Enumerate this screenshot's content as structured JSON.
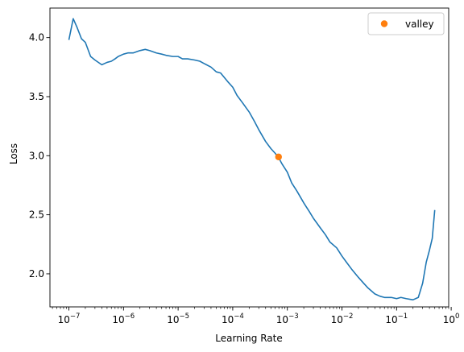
{
  "chart_data": {
    "type": "line",
    "xlabel": "Learning Rate",
    "ylabel": "Loss",
    "x_scale": "log",
    "xlim": [
      4.5e-08,
      0.9
    ],
    "ylim": [
      1.72,
      4.25
    ],
    "x_ticks": [
      {
        "value": 1e-07,
        "base": "10",
        "exp": "−7"
      },
      {
        "value": 1e-06,
        "base": "10",
        "exp": "−6"
      },
      {
        "value": 1e-05,
        "base": "10",
        "exp": "−5"
      },
      {
        "value": 0.0001,
        "base": "10",
        "exp": "−4"
      },
      {
        "value": 0.001,
        "base": "10",
        "exp": "−3"
      },
      {
        "value": 0.01,
        "base": "10",
        "exp": "−2"
      },
      {
        "value": 0.1,
        "base": "10",
        "exp": "−1"
      },
      {
        "value": 1,
        "base": "10",
        "exp": "0"
      }
    ],
    "y_ticks": [
      {
        "value": 2.0,
        "label": "2.0"
      },
      {
        "value": 2.5,
        "label": "2.5"
      },
      {
        "value": 3.0,
        "label": "3.0"
      },
      {
        "value": 3.5,
        "label": "3.5"
      },
      {
        "value": 4.0,
        "label": "4.0"
      }
    ],
    "grid": false,
    "legend": {
      "placement": "top-right",
      "entries": [
        "valley"
      ]
    },
    "series": [
      {
        "color": "#1f77b4",
        "x": [
          1e-07,
          1.2e-07,
          1.4e-07,
          1.7e-07,
          2e-07,
          2.5e-07,
          3e-07,
          4e-07,
          5e-07,
          6e-07,
          7e-07,
          8e-07,
          1e-06,
          1.2e-06,
          1.5e-06,
          2e-06,
          2.5e-06,
          3e-06,
          4e-06,
          5e-06,
          6e-06,
          8e-06,
          1e-05,
          1.2e-05,
          1.5e-05,
          2e-05,
          2.5e-05,
          3e-05,
          4e-05,
          5e-05,
          6e-05,
          8e-05,
          0.0001,
          0.00012,
          0.00015,
          0.0002,
          0.00025,
          0.0003,
          0.0004,
          0.0005,
          0.0006,
          0.0007,
          0.0008,
          0.001,
          0.0012,
          0.0015,
          0.002,
          0.0025,
          0.003,
          0.004,
          0.005,
          0.006,
          0.008,
          0.01,
          0.012,
          0.015,
          0.02,
          0.025,
          0.03,
          0.04,
          0.05,
          0.06,
          0.08,
          0.1,
          0.12,
          0.15,
          0.2,
          0.25,
          0.3,
          0.35,
          0.4,
          0.45,
          0.5
        ],
        "y": [
          3.98,
          4.16,
          4.09,
          3.99,
          3.96,
          3.84,
          3.81,
          3.77,
          3.79,
          3.8,
          3.82,
          3.84,
          3.86,
          3.87,
          3.87,
          3.89,
          3.9,
          3.89,
          3.87,
          3.86,
          3.85,
          3.84,
          3.84,
          3.82,
          3.82,
          3.81,
          3.8,
          3.78,
          3.75,
          3.71,
          3.7,
          3.63,
          3.58,
          3.51,
          3.45,
          3.37,
          3.29,
          3.22,
          3.12,
          3.06,
          3.02,
          2.98,
          2.93,
          2.86,
          2.77,
          2.7,
          2.6,
          2.53,
          2.47,
          2.39,
          2.33,
          2.27,
          2.22,
          2.15,
          2.1,
          2.04,
          1.97,
          1.92,
          1.88,
          1.83,
          1.81,
          1.8,
          1.8,
          1.79,
          1.8,
          1.79,
          1.78,
          1.8,
          1.92,
          2.1,
          2.2,
          2.3,
          2.54
        ]
      }
    ],
    "markers": [
      {
        "name": "valley",
        "color": "#ff7f0e",
        "x": 0.00069,
        "y": 2.99
      }
    ]
  }
}
